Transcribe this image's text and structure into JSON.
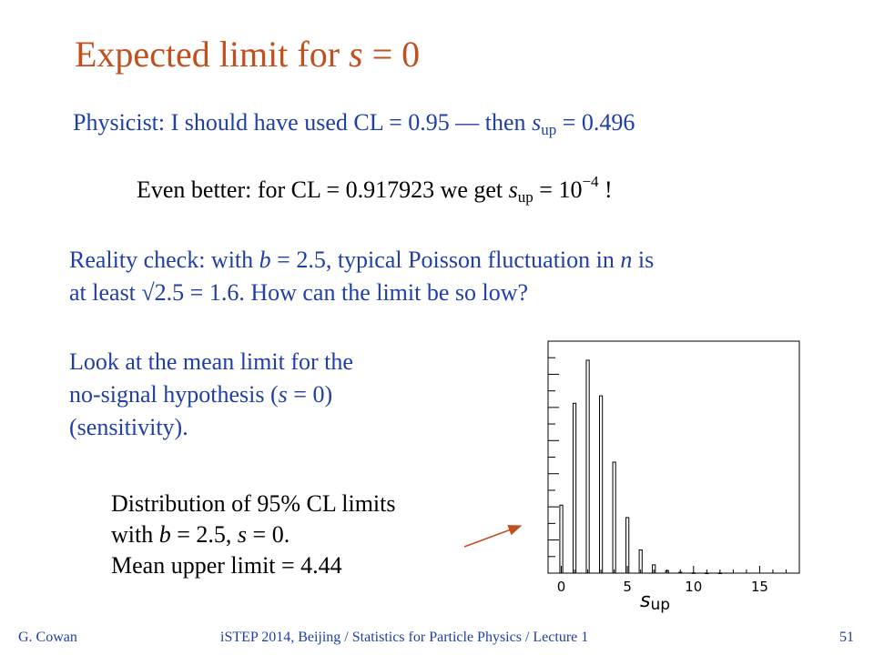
{
  "slide": {
    "title_prefix": "Expected limit for ",
    "title_var": "s",
    "title_suffix": " = 0",
    "line1": {
      "a": "Physicist:  I should have used CL = 0.95 — then ",
      "var": "s",
      "sub": "up",
      "b": " = 0.496"
    },
    "line2": {
      "a": "Even better:  for CL = 0.917923 we get ",
      "var": "s",
      "sub": "up",
      "b": " = 10",
      "sup": "−4",
      "c": " !"
    },
    "reality": {
      "a": "Reality check:  with ",
      "var_b": "b",
      "b": " = 2.5, typical Poisson fluctuation in ",
      "var_n": "n",
      "c": " is",
      "d": "at least √2.5 = 1.6.  How can the limit be so low?"
    },
    "look": {
      "l1": "Look at the mean limit for the",
      "l2a": "no-signal  hypothesis  (",
      "l2var": "s",
      "l2b": " = 0)",
      "l3": "(sensitivity)."
    },
    "dist": {
      "l1": "Distribution of 95% CL limits",
      "l2a": "with ",
      "l2b_var": "b",
      "l2b": " = 2.5, ",
      "l2s_var": "s",
      "l2c": " = 0.",
      "l3": "Mean upper limit = 4.44"
    },
    "footer": {
      "left": "G. Cowan",
      "middle": "iSTEP 2014, Beijing / Statistics for Particle Physics / Lecture 1",
      "right": "51"
    },
    "colors": {
      "title": "#c0501e",
      "text": "#1f3fa6",
      "arrow": "#c0501e"
    }
  },
  "chart_data": {
    "type": "bar",
    "x": [
      0,
      1,
      2,
      3,
      4,
      5,
      6,
      7,
      8,
      9,
      10,
      11,
      12
    ],
    "values": [
      0.082,
      0.205,
      0.257,
      0.214,
      0.134,
      0.067,
      0.028,
      0.01,
      0.003,
      0.001,
      0.0003,
      0.0001,
      0.0001
    ],
    "xlim": [
      -1,
      18
    ],
    "ylim": [
      0,
      0.28
    ],
    "xticks": [
      0,
      5,
      10,
      15
    ],
    "xlabel_var": "s",
    "xlabel_sub": "up"
  }
}
